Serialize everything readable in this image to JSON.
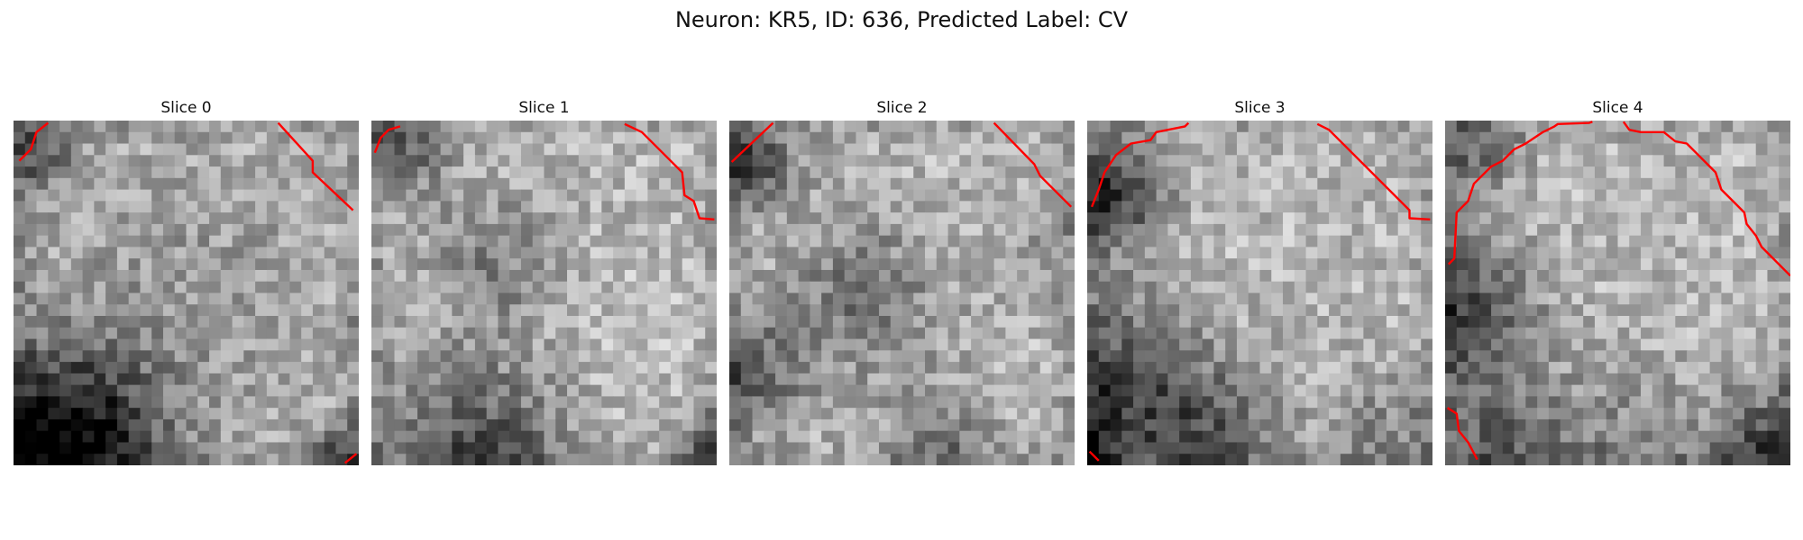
{
  "figure": {
    "title": "Neuron: KR5, ID: 636, Predicted Label: CV"
  },
  "colors": {
    "contour": "#ff0000",
    "background": "#ffffff"
  },
  "slices": [
    {
      "title": "Slice 0"
    },
    {
      "title": "Slice 1"
    },
    {
      "title": "Slice 2"
    },
    {
      "title": "Slice 3"
    },
    {
      "title": "Slice 4"
    }
  ]
}
